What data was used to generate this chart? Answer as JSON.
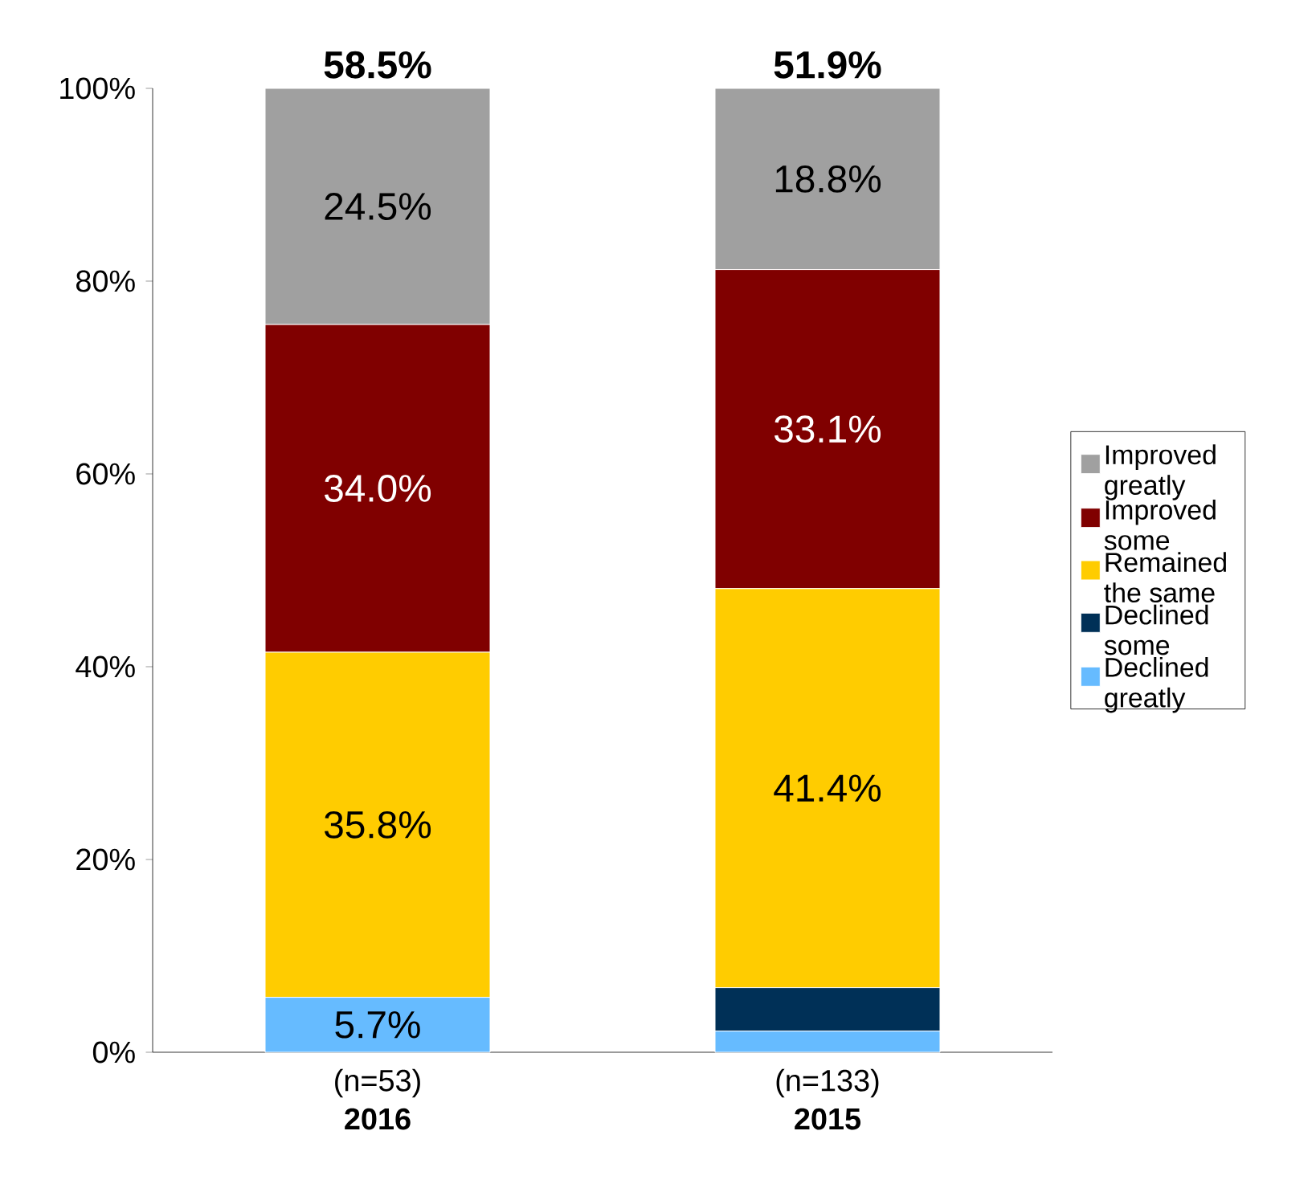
{
  "chart_data": {
    "type": "bar",
    "stacked": true,
    "categories": [
      "(n=53) **2016**",
      "(n=133) **2015**"
    ],
    "series": [
      {
        "name": "Declined greatly",
        "color": "#66bbff",
        "values": [
          5.7,
          2.2
        ],
        "value_labels": [
          "5.7%",
          null
        ]
      },
      {
        "name": "Declined some",
        "color": "#003057",
        "values": [
          0,
          4.5
        ],
        "value_labels": [
          null,
          null
        ]
      },
      {
        "name": "Remained the same",
        "color": "#ffcc00",
        "values": [
          35.8,
          41.4
        ],
        "value_labels": [
          "35.8%",
          "41.4%"
        ]
      },
      {
        "name": "Improved some",
        "color": "#800000",
        "values": [
          34.0,
          33.1
        ],
        "value_labels": [
          "34.0%",
          "33.1%"
        ]
      },
      {
        "name": "Improved greatly",
        "color": "#a0a0a0",
        "values": [
          24.5,
          18.8
        ],
        "value_labels": [
          "24.5%",
          "18.8%"
        ]
      }
    ],
    "annotations": [
      "58.5%",
      "51.9%"
    ],
    "ylim": [
      0,
      100
    ],
    "yticks": [
      {
        "value": 0,
        "label": "0%"
      },
      {
        "value": 20,
        "label": "20%"
      },
      {
        "value": 40,
        "label": "40%"
      },
      {
        "value": 60,
        "label": "60%"
      },
      {
        "value": 80,
        "label": "80%"
      },
      {
        "value": 100,
        "label": "100%"
      }
    ],
    "legend": "right"
  }
}
